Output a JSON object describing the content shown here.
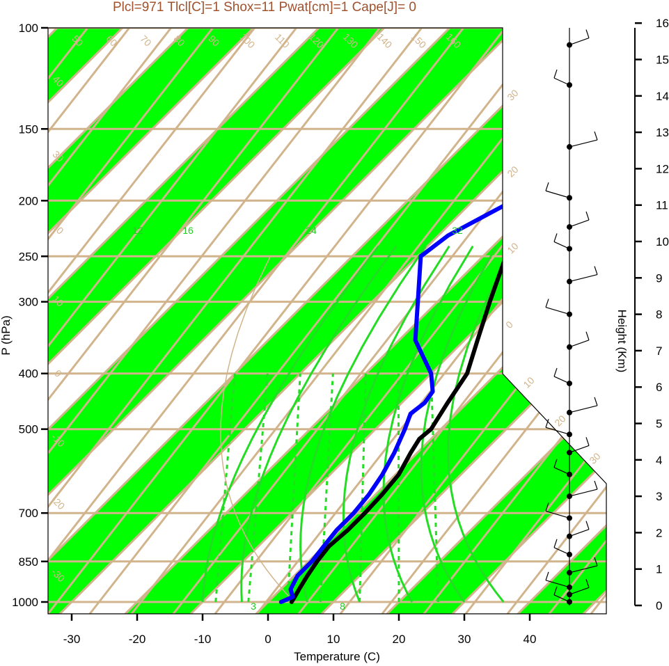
{
  "title": "Plcl=971 Tlcl[C]=1 Shox=11 Pwat[cm]=1 Cape[J]= 0",
  "colors": {
    "band": "#00ff00",
    "tan": "#d2b48c",
    "temp": "#000000",
    "dew": "#0000ff",
    "title": "#a0522d"
  },
  "chart_data": {
    "type": "line",
    "title": "Plcl=971 Tlcl[C]=1 Shox=11 Pwat[cm]=1 Cape[J]= 0",
    "xlabel": "Temperature (C)",
    "ylabel": "P (hPa)",
    "y2label": "Height (Km)",
    "y_scale": "log",
    "xlim": [
      -34,
      36
    ],
    "ylim": [
      1050,
      100
    ],
    "x_ticks": [
      -30,
      -20,
      -10,
      0,
      10,
      20,
      30,
      40
    ],
    "x_tick_labels": [
      "-30",
      "-20",
      "-10",
      "0",
      "10",
      "20",
      "30",
      "40"
    ],
    "p_ticks": [
      100,
      150,
      200,
      250,
      300,
      400,
      500,
      700,
      850,
      1000
    ],
    "p_tick_labels": [
      "100",
      "150",
      "200",
      "250",
      "300",
      "400",
      "500",
      "700",
      "850",
      "1000"
    ],
    "height_ticks": [
      0,
      1,
      2,
      3,
      4,
      5,
      6,
      7,
      8,
      9,
      10,
      11,
      12,
      13,
      14,
      15,
      16
    ],
    "height_tick_labels": [
      "0",
      "1",
      "2",
      "3",
      "4",
      "5",
      "6",
      "7",
      "8",
      "9",
      "10",
      "11",
      "12",
      "13",
      "14",
      "15",
      "16"
    ],
    "top_isotherm_labels": [
      "50",
      "60",
      "70",
      "80",
      "90",
      "100",
      "110",
      "120",
      "130",
      "140",
      "150",
      "160"
    ],
    "left_isotherm_labels": [
      "40",
      "30",
      "20",
      "10",
      "0",
      "-10",
      "-20",
      "-30"
    ],
    "right_isotherm_labels": [
      "30",
      "20",
      "10",
      "0",
      "10",
      "20",
      "30"
    ],
    "mixing_ratio_labels": [
      "12",
      "16",
      "24",
      "32"
    ],
    "dashed_labels": [
      "3",
      "8"
    ],
    "series": [
      {
        "name": "Temperature",
        "color": "#000000",
        "p": [
          1000,
          980,
          950,
          900,
          850,
          800,
          750,
          700,
          650,
          600,
          550,
          520,
          500,
          450,
          400,
          350,
          300,
          250,
          230,
          210,
          190,
          175,
          160,
          145,
          130,
          115,
          105
        ],
        "t": [
          3.6,
          3.3,
          2.8,
          2.0,
          1.3,
          0.8,
          1.2,
          1.2,
          1.0,
          0.5,
          -1.0,
          -1.8,
          -1.5,
          -3.0,
          -4.5,
          -8.0,
          -12.0,
          -16.5,
          -17.0,
          -16.0,
          -13.0,
          -6.0,
          -1.0,
          3.5,
          7.0,
          9.5,
          11.0
        ]
      },
      {
        "name": "Dew point",
        "color": "#0000ff",
        "p": [
          1000,
          980,
          950,
          900,
          850,
          800,
          750,
          700,
          650,
          600,
          550,
          500,
          470,
          450,
          430,
          400,
          350,
          300,
          250,
          230,
          210,
          195,
          185,
          175,
          165,
          150,
          130,
          115,
          105
        ],
        "t": [
          2.0,
          3.0,
          1.5,
          0.5,
          0.5,
          0.0,
          -0.5,
          -0.5,
          -1.0,
          -2.0,
          -3.5,
          -5.5,
          -7.0,
          -6.5,
          -7.0,
          -10.0,
          -17.5,
          -23.0,
          -29.5,
          -28.5,
          -25.5,
          -23.0,
          -23.0,
          -28.0,
          -25.0,
          -20.0,
          -13.0,
          -7.5,
          -4.0
        ]
      }
    ],
    "wind_barbs_km": [
      0.1,
      0.3,
      0.5,
      0.9,
      1.4,
      1.9,
      2.4,
      3.0,
      3.6,
      4.2,
      4.7,
      5.3,
      6.1,
      7.1,
      8.0,
      8.9,
      9.8,
      10.4,
      11.2,
      12.6,
      14.3,
      15.4
    ]
  }
}
